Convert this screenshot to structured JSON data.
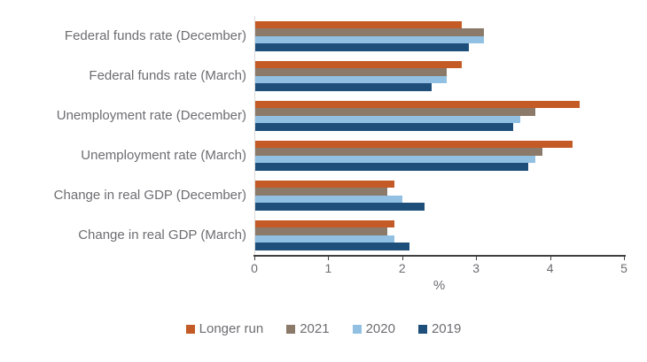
{
  "chart_data": {
    "type": "bar",
    "orientation": "horizontal",
    "title": "",
    "xlabel": "%",
    "xlim": [
      0,
      5
    ],
    "xticks": [
      0,
      1,
      2,
      3,
      4,
      5
    ],
    "grid": false,
    "legend_position": "bottom",
    "categories": [
      "Federal funds rate (December)",
      "Federal funds rate (March)",
      "Unemployment rate (December)",
      "Unemployment rate (March)",
      "Change in real GDP (December)",
      "Change in real GDP (March)"
    ],
    "series": [
      {
        "name": "Longer run",
        "color": "#c45a26",
        "values": [
          2.8,
          2.8,
          4.4,
          4.3,
          1.9,
          1.9
        ]
      },
      {
        "name": "2021",
        "color": "#8b7a6a",
        "values": [
          3.1,
          2.6,
          3.8,
          3.9,
          1.8,
          1.8
        ]
      },
      {
        "name": "2020",
        "color": "#92c0e2",
        "values": [
          3.1,
          2.6,
          3.6,
          3.8,
          2.0,
          1.9
        ]
      },
      {
        "name": "2019",
        "color": "#1e4f7b",
        "values": [
          2.9,
          2.4,
          3.5,
          3.7,
          2.3,
          2.1
        ]
      }
    ]
  },
  "colors": {
    "background": "#ffffff",
    "axis_line": "#3f3f3f",
    "zero_gridline": "#d9d9d9",
    "text": "#6d6d72"
  }
}
